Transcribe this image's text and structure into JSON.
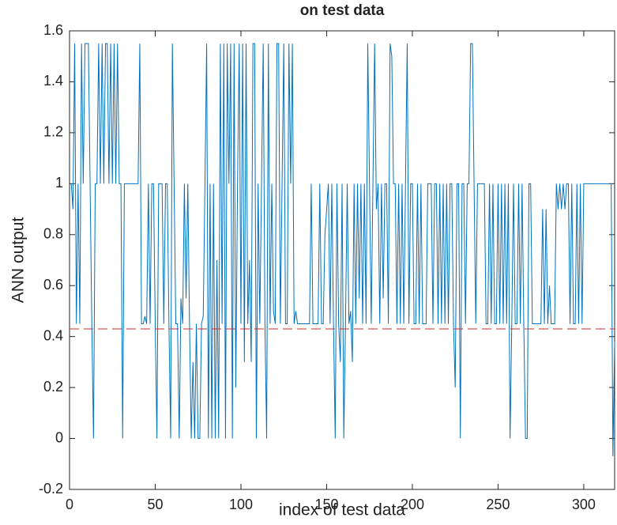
{
  "chart_data": {
    "type": "line",
    "title": "on test data",
    "x_label": "index of test data",
    "y_label": "ANN output",
    "xlim": [
      0,
      318
    ],
    "ylim": [
      -0.2,
      1.6
    ],
    "xticks": [
      0,
      50,
      100,
      150,
      200,
      250,
      300
    ],
    "yticks": [
      -0.2,
      0,
      0.2,
      0.4,
      0.6,
      0.8,
      1,
      1.2,
      1.4,
      1.6
    ],
    "threshold": {
      "value": 0.43,
      "color": "#d62728"
    },
    "series": [
      {
        "color": "#0072bd",
        "x": [
          1,
          2,
          3,
          4,
          5,
          6,
          7,
          8,
          9,
          10,
          11,
          12,
          13,
          14,
          15,
          16,
          17,
          18,
          19,
          20,
          21,
          22,
          23,
          24,
          25,
          26,
          27,
          28,
          29,
          30,
          31,
          32,
          33,
          34,
          35,
          36,
          37,
          38,
          39,
          40,
          41,
          42,
          43,
          44,
          45,
          46,
          47,
          48,
          49,
          50,
          51,
          52,
          53,
          54,
          55,
          56,
          57,
          58,
          59,
          60,
          61,
          62,
          63,
          64,
          65,
          66,
          67,
          68,
          69,
          70,
          71,
          72,
          73,
          74,
          75,
          76,
          77,
          78,
          79,
          80,
          81,
          82,
          83,
          84,
          85,
          86,
          87,
          88,
          89,
          90,
          91,
          92,
          93,
          94,
          95,
          96,
          97,
          98,
          99,
          100,
          101,
          102,
          103,
          104,
          105,
          106,
          107,
          108,
          109,
          110,
          111,
          112,
          113,
          114,
          115,
          116,
          117,
          118,
          119,
          120,
          121,
          122,
          123,
          124,
          125,
          126,
          127,
          128,
          129,
          130,
          131,
          132,
          133,
          134,
          135,
          136,
          137,
          138,
          139,
          140,
          141,
          142,
          143,
          144,
          145,
          146,
          147,
          148,
          149,
          150,
          151,
          152,
          153,
          154,
          155,
          156,
          157,
          158,
          159,
          160,
          161,
          162,
          163,
          164,
          165,
          166,
          167,
          168,
          169,
          170,
          171,
          172,
          173,
          174,
          175,
          176,
          177,
          178,
          179,
          180,
          181,
          182,
          183,
          184,
          185,
          186,
          187,
          188,
          189,
          190,
          191,
          192,
          193,
          194,
          195,
          196,
          197,
          198,
          199,
          200,
          201,
          202,
          203,
          204,
          205,
          206,
          207,
          208,
          209,
          210,
          211,
          212,
          213,
          214,
          215,
          216,
          217,
          218,
          219,
          220,
          221,
          222,
          223,
          224,
          225,
          226,
          227,
          228,
          229,
          230,
          231,
          232,
          233,
          234,
          235,
          236,
          237,
          238,
          239,
          240,
          241,
          242,
          243,
          244,
          245,
          246,
          247,
          248,
          249,
          250,
          251,
          252,
          253,
          254,
          255,
          256,
          257,
          258,
          259,
          260,
          261,
          262,
          263,
          264,
          265,
          266,
          267,
          268,
          269,
          270,
          271,
          272,
          273,
          274,
          275,
          276,
          277,
          278,
          279,
          280,
          281,
          282,
          283,
          284,
          285,
          286,
          287,
          288,
          289,
          290,
          291,
          292,
          293,
          294,
          295,
          296,
          297,
          298,
          299,
          300,
          301,
          302,
          303,
          304,
          305,
          306,
          307,
          308,
          309,
          310,
          311,
          312,
          313,
          314,
          315,
          316,
          317,
          318
        ],
        "values": [
          1,
          0.9,
          1.55,
          0.45,
          1,
          0.45,
          1.55,
          1,
          1.55,
          1.55,
          1.55,
          1,
          0.45,
          0,
          1,
          1,
          1.55,
          1,
          1.55,
          1,
          1.55,
          1.55,
          1,
          1.55,
          1,
          1.55,
          1,
          1.55,
          1,
          1,
          0,
          1,
          1,
          1,
          1,
          1,
          1,
          1,
          1,
          1,
          1.55,
          0.45,
          0.45,
          0.48,
          0.45,
          1,
          0.45,
          1,
          1,
          0.45,
          0,
          1,
          1,
          1,
          0.45,
          1,
          1,
          0.45,
          0,
          1.55,
          1,
          0.45,
          0.45,
          0,
          0.55,
          0.45,
          1,
          0.55,
          1,
          0.45,
          0,
          0.3,
          0,
          0.45,
          0,
          0,
          0.45,
          0.48,
          1,
          1.55,
          0,
          1,
          0,
          1,
          0,
          0.7,
          0,
          1.55,
          0.45,
          1.55,
          0,
          1.55,
          1,
          1.55,
          0,
          1.55,
          0.2,
          1,
          1.55,
          0.45,
          1.55,
          0.3,
          1.55,
          0.45,
          0.7,
          0.3,
          1.55,
          1.55,
          0,
          1,
          0.45,
          1,
          1.55,
          0.45,
          0,
          1.55,
          0.45,
          1,
          0.5,
          0.45,
          1.55,
          1.55,
          0.45,
          1,
          1.55,
          0.45,
          0.45,
          1.55,
          1,
          1.55,
          0.45,
          0.5,
          0.45,
          0.45,
          0.45,
          0.45,
          0.45,
          0.45,
          0.45,
          0.45,
          1,
          0.45,
          0.45,
          0.45,
          0.45,
          1,
          0.45,
          0.45,
          0.8,
          0.9,
          1,
          0.45,
          1,
          0.45,
          0,
          1,
          0.45,
          0.3,
          1,
          0,
          0.45,
          1,
          0.45,
          0.5,
          0.3,
          1,
          0.45,
          1,
          0.55,
          1,
          0.45,
          1,
          0.45,
          1.55,
          1,
          0.45,
          1,
          1.55,
          0.9,
          1,
          0.45,
          1,
          0.55,
          1,
          1,
          0.45,
          1.55,
          1.5,
          1,
          1,
          0.45,
          1,
          0.45,
          1,
          0.45,
          1,
          1.55,
          0.45,
          1,
          1,
          0.45,
          0.45,
          1,
          0.45,
          1,
          0.45,
          0.45,
          0.45,
          1,
          1,
          1,
          0.45,
          1,
          1,
          0.45,
          1,
          0.45,
          1,
          0.45,
          1,
          0.45,
          1,
          1,
          0.45,
          0.2,
          1,
          1,
          0,
          1,
          1,
          0.45,
          1,
          1,
          1.55,
          1.55,
          1,
          0.45,
          1,
          1,
          1,
          1,
          1,
          0.45,
          0.45,
          1,
          0.45,
          1,
          0.45,
          0.45,
          1,
          0.45,
          1,
          0.45,
          1,
          0.45,
          1,
          0,
          0.45,
          1,
          0.45,
          0.45,
          1,
          0.45,
          1,
          0.45,
          0,
          0,
          1,
          1,
          0.45,
          0.45,
          0.45,
          0.45,
          0.45,
          0.45,
          0.9,
          0.45,
          0.9,
          0.45,
          0.6,
          0.45,
          0.45,
          0.45,
          1,
          0.9,
          1,
          0.9,
          1,
          0.9,
          1,
          1,
          0.45,
          1,
          0.45,
          0.45,
          1,
          0.45,
          1,
          0.45,
          1,
          1,
          1,
          1,
          1,
          1,
          1,
          1,
          1,
          1,
          1,
          1,
          1,
          1,
          1,
          1,
          1,
          -0.07,
          0.38
        ]
      }
    ]
  }
}
